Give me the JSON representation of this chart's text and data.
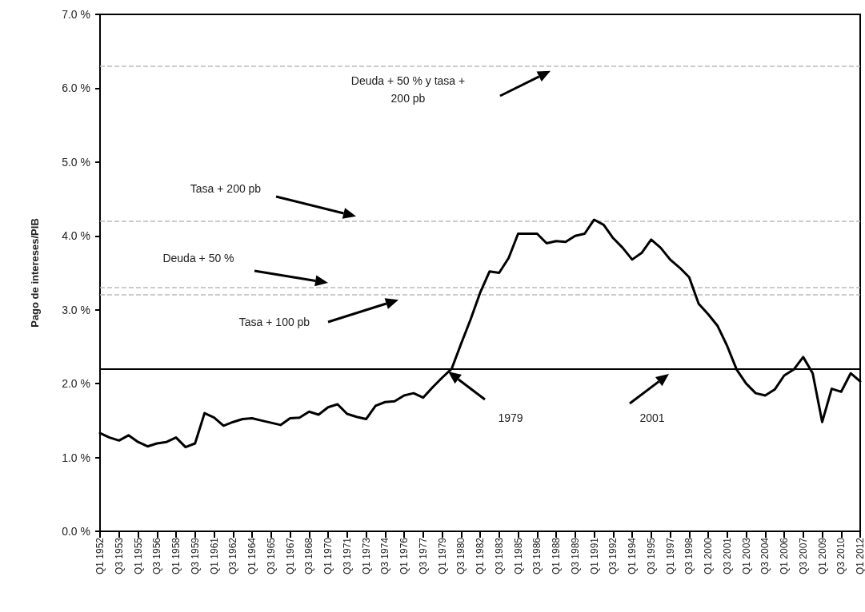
{
  "chart_data": {
    "type": "line",
    "ylabel": "Pago de intereses/PIB",
    "categories": [
      "Q1 1952",
      null,
      "Q3 1953",
      null,
      "Q1 1955",
      null,
      "Q3 1956",
      null,
      "Q1 1958",
      null,
      "Q3 1959",
      null,
      "Q1 1961",
      null,
      "Q3 1962",
      null,
      "Q1 1964",
      null,
      "Q3 1965",
      null,
      "Q1 1967",
      null,
      "Q3 1968",
      null,
      "Q1 1970",
      null,
      "Q3 1971",
      null,
      "Q1 1973",
      null,
      "Q3 1974",
      null,
      "Q1 1976",
      null,
      "Q3 1977",
      null,
      "Q1 1979",
      null,
      "Q3 1980",
      null,
      "Q1 1982",
      null,
      "Q3 1983",
      null,
      "Q1 1985",
      null,
      "Q3 1986",
      null,
      "Q1 1988",
      null,
      "Q3 1989",
      null,
      "Q1 1991",
      null,
      "Q3 1992",
      null,
      "Q1 1994",
      null,
      "Q3 1995",
      null,
      "Q1 1997",
      null,
      "Q3 1998",
      null,
      "Q1 2000",
      null,
      "Q3 2001",
      null,
      "Q1 2003",
      null,
      "Q3 2004",
      null,
      "Q1 2006",
      null,
      "Q3 2007",
      null,
      "Q1 2009",
      null,
      "Q3 2010",
      null,
      "Q1 2012"
    ],
    "series": [
      {
        "color": "#000000",
        "values": [
          1.33,
          1.27,
          1.23,
          1.3,
          1.21,
          1.15,
          1.19,
          1.21,
          1.27,
          1.14,
          1.19,
          1.6,
          1.54,
          1.43,
          1.48,
          1.52,
          1.53,
          1.5,
          1.47,
          1.44,
          1.53,
          1.54,
          1.62,
          1.58,
          1.68,
          1.72,
          1.59,
          1.55,
          1.52,
          1.7,
          1.75,
          1.76,
          1.84,
          1.87,
          1.81,
          1.95,
          2.08,
          2.2,
          2.54,
          2.87,
          3.23,
          3.52,
          3.5,
          3.7,
          4.03,
          4.03,
          4.03,
          3.9,
          3.93,
          3.92,
          4.0,
          4.03,
          4.22,
          4.15,
          3.97,
          3.84,
          3.68,
          3.77,
          3.95,
          3.84,
          3.68,
          3.57,
          3.44,
          3.08,
          2.94,
          2.78,
          2.51,
          2.19,
          2.0,
          1.87,
          1.84,
          1.92,
          2.11,
          2.19,
          2.36,
          2.14,
          1.48,
          1.93,
          1.89,
          2.14,
          2.03
        ]
      }
    ],
    "ylim": [
      0,
      7
    ],
    "yticks": [
      {
        "value": 0,
        "label": "0.0 %"
      },
      {
        "value": 1,
        "label": "1.0 %"
      },
      {
        "value": 2,
        "label": "2.0 %"
      },
      {
        "value": 3,
        "label": "3.0 %"
      },
      {
        "value": 4,
        "label": "4.0 %"
      },
      {
        "value": 5,
        "label": "5.0 %"
      },
      {
        "value": 6,
        "label": "6.0 %"
      },
      {
        "value": 7,
        "label": "7.0 %"
      }
    ],
    "ref_lines": [
      {
        "axis": "y",
        "value": 6.3,
        "label": "Deuda + 50 % y tasa + 200 pb",
        "color": "#bbbbbb",
        "line_style": "dashed"
      },
      {
        "axis": "y",
        "value": 4.2,
        "label": "Tasa + 200 pb",
        "color": "#bbbbbb",
        "line_style": "dashed"
      },
      {
        "axis": "y",
        "value": 3.3,
        "label": "Deuda + 50 %",
        "color": "#bbbbbb",
        "line_style": "dashed"
      },
      {
        "axis": "y",
        "value": 3.2,
        "label": "Tasa + 100 pb",
        "color": "#bbbbbb",
        "line_style": "dashed"
      },
      {
        "axis": "y",
        "value": 2.2,
        "color": "#000000",
        "line_style": "solid"
      }
    ],
    "annotations": [
      "1979",
      "2001"
    ],
    "grid": false,
    "marker": "none",
    "line_style": "solid"
  }
}
